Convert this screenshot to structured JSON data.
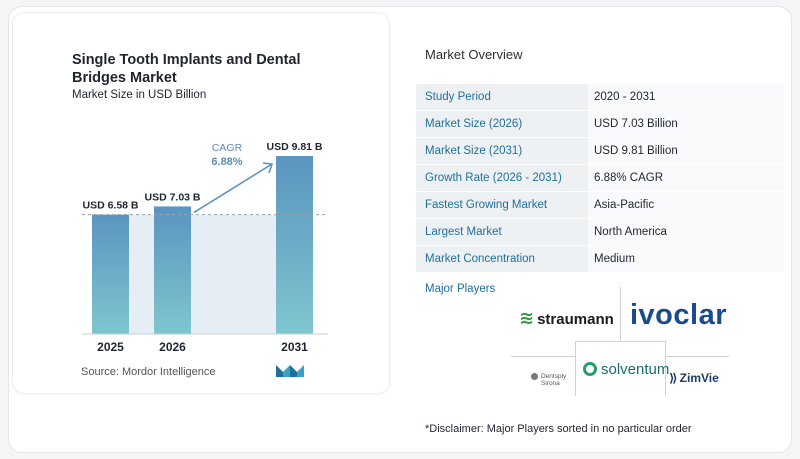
{
  "chart_data": {
    "type": "bar",
    "title": "Single Tooth Implants and Dental Bridges Market",
    "subtitle": "Market Size in USD Billion",
    "categories": [
      "2025",
      "2026",
      "2031"
    ],
    "values": [
      6.58,
      7.03,
      9.81
    ],
    "value_labels": [
      "USD 6.58 B",
      "USD 7.03 B",
      "USD 9.81 B"
    ],
    "annotation": {
      "label": "CAGR",
      "value": "6.88%"
    },
    "bar_color": "#5a95bf",
    "bar_color_light": "#7fc6cf",
    "area_color": "#e4eef4",
    "reference_line_value": 6.58
  },
  "source": "Source:  Mordor Intelligence",
  "overview": {
    "title": "Market Overview",
    "rows": [
      {
        "key": "Study Period",
        "value": "2020 - 2031"
      },
      {
        "key": "Market Size (2026)",
        "value": "USD 7.03 Billion"
      },
      {
        "key": "Market Size (2031)",
        "value": "USD 9.81 Billion"
      },
      {
        "key": "Growth Rate (2026 - 2031)",
        "value": "6.88% CAGR"
      },
      {
        "key": "Fastest Growing Market",
        "value": "Asia-Pacific"
      },
      {
        "key": "Largest Market",
        "value": "North America"
      },
      {
        "key": "Market Concentration",
        "value": "Medium"
      }
    ]
  },
  "players": {
    "title": "Major Players",
    "logos": {
      "straumann": "straumann",
      "ivoclar": "ivoclar",
      "solventum": "solventum",
      "dentsply_line1": "Dentsply",
      "dentsply_line2": "Sirona",
      "zimvie": "ZimVie"
    }
  },
  "disclaimer": "*Disclaimer: Major Players sorted in no particular order"
}
